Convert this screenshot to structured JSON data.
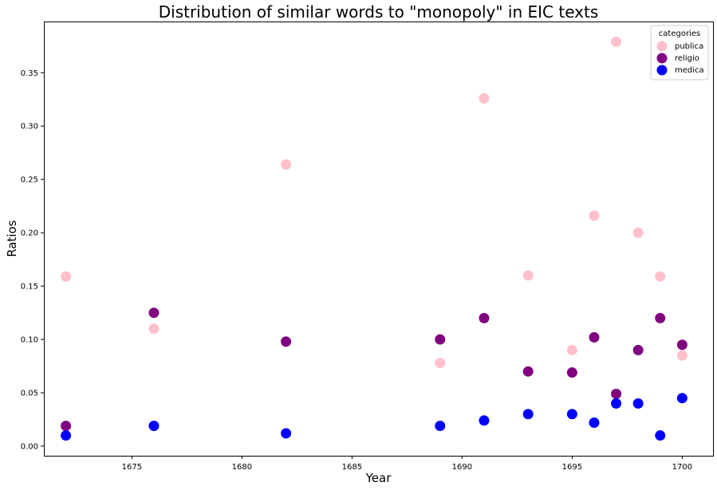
{
  "chart_data": {
    "type": "scatter",
    "title": "Distribution of similar words to \"monopoly\" in EIC texts",
    "xlabel": "Year",
    "ylabel": "Ratios",
    "xlim": [
      1671.0,
      1701.4
    ],
    "ylim": [
      -0.009,
      0.398
    ],
    "xticks": [
      "1675",
      "1680",
      "1685",
      "1690",
      "1695",
      "1700"
    ],
    "yticks": [
      "0.00",
      "0.05",
      "0.10",
      "0.15",
      "0.20",
      "0.25",
      "0.30",
      "0.35"
    ],
    "grid": false,
    "legend": {
      "title": "categories",
      "position": "top-right"
    },
    "series": [
      {
        "name": "publica",
        "color": "#ffc0cb",
        "points": [
          [
            1672,
            0.159
          ],
          [
            1676,
            0.11
          ],
          [
            1682,
            0.264
          ],
          [
            1689,
            0.078
          ],
          [
            1691,
            0.326
          ],
          [
            1693,
            0.16
          ],
          [
            1695,
            0.09
          ],
          [
            1696,
            0.216
          ],
          [
            1697,
            0.379
          ],
          [
            1698,
            0.2
          ],
          [
            1699,
            0.159
          ],
          [
            1700,
            0.085
          ]
        ]
      },
      {
        "name": "religio",
        "color": "#800080",
        "points": [
          [
            1672,
            0.019
          ],
          [
            1676,
            0.125
          ],
          [
            1682,
            0.098
          ],
          [
            1689,
            0.1
          ],
          [
            1691,
            0.12
          ],
          [
            1693,
            0.07
          ],
          [
            1695,
            0.069
          ],
          [
            1696,
            0.102
          ],
          [
            1697,
            0.049
          ],
          [
            1698,
            0.09
          ],
          [
            1699,
            0.12
          ],
          [
            1700,
            0.095
          ]
        ]
      },
      {
        "name": "medica",
        "color": "#0000ff",
        "points": [
          [
            1672,
            0.01
          ],
          [
            1676,
            0.019
          ],
          [
            1682,
            0.012
          ],
          [
            1689,
            0.019
          ],
          [
            1691,
            0.024
          ],
          [
            1693,
            0.03
          ],
          [
            1695,
            0.03
          ],
          [
            1696,
            0.022
          ],
          [
            1697,
            0.04
          ],
          [
            1698,
            0.04
          ],
          [
            1699,
            0.01
          ],
          [
            1700,
            0.045
          ]
        ]
      }
    ]
  }
}
